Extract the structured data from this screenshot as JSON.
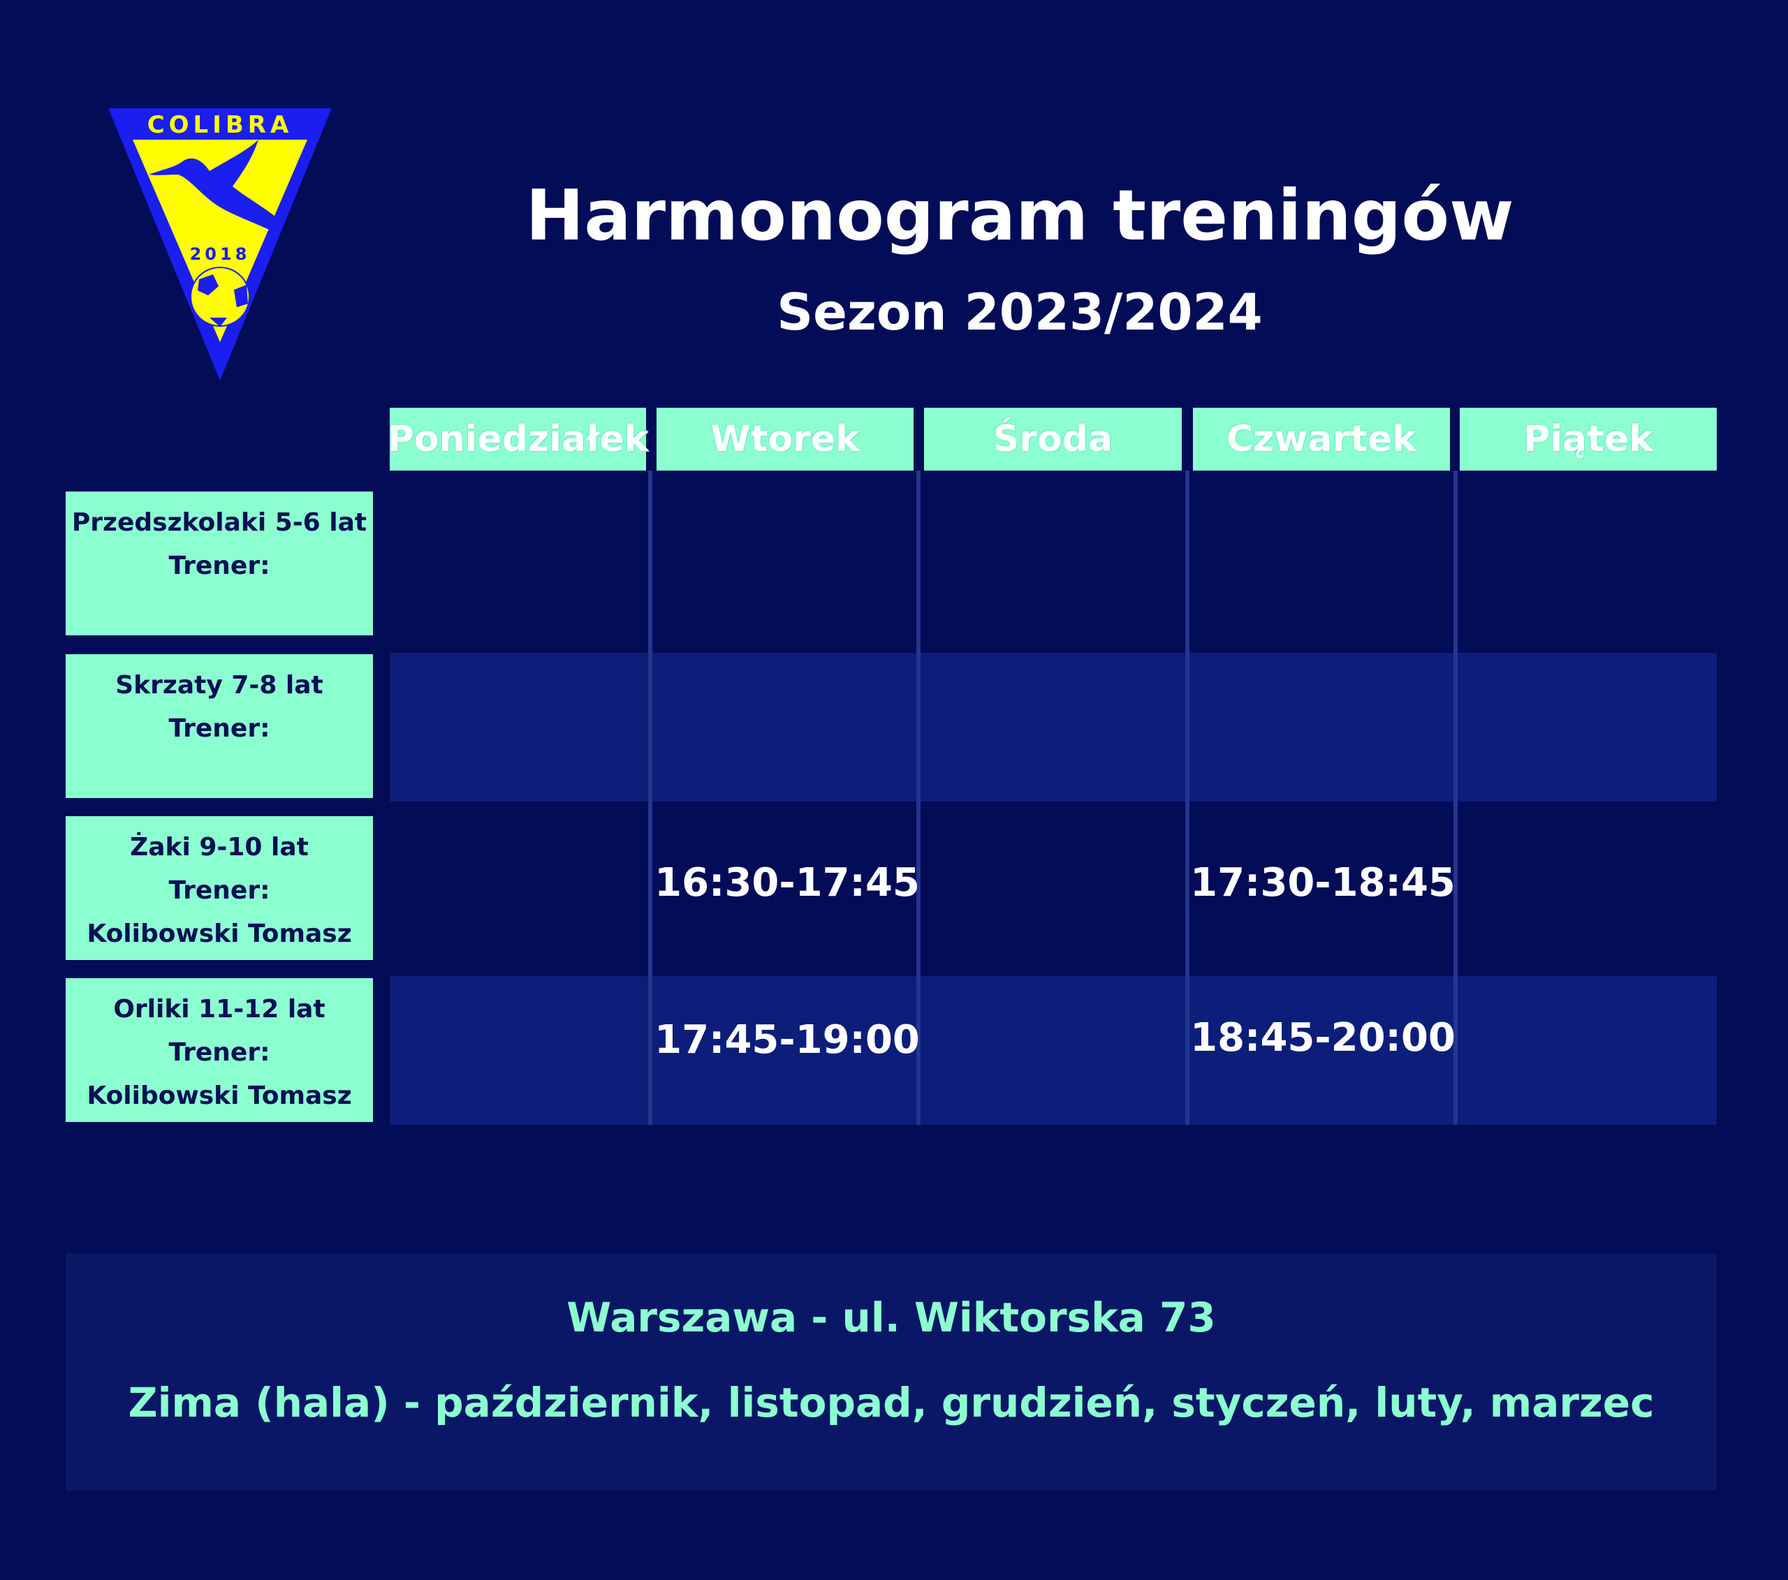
{
  "logo": {
    "top_text": "COLIBRA",
    "year": "2018",
    "colors": {
      "outer": "#1a1ef0",
      "inner": "#ffff00"
    }
  },
  "header": {
    "title": "Harmonogram treningów",
    "subtitle": "Sezon 2023/2024"
  },
  "days": [
    "Poniedziałek",
    "Wtorek",
    "Środa",
    "Czwartek",
    "Piątek"
  ],
  "groups": [
    {
      "name": "Przedszkolaki 5-6 lat",
      "trainer_label": "Trener:",
      "trainer": "",
      "times": [
        "",
        "",
        "",
        "",
        ""
      ]
    },
    {
      "name": "Skrzaty 7-8 lat",
      "trainer_label": "Trener:",
      "trainer": "",
      "times": [
        "",
        "",
        "",
        "",
        ""
      ]
    },
    {
      "name": "Żaki 9-10 lat",
      "trainer_label": "Trener:",
      "trainer": "Kolibowski Tomasz",
      "times": [
        "",
        "16:30-17:45",
        "",
        "17:30-18:45",
        ""
      ]
    },
    {
      "name": "Orliki 11-12 lat",
      "trainer_label": "Trener:",
      "trainer": "Kolibowski Tomasz",
      "times": [
        "",
        "17:45-19:00",
        "",
        "18:45-20:00",
        ""
      ]
    }
  ],
  "footer": {
    "location": "Warszawa - ul. Wiktorska 73",
    "season_note": "Zima (hala) - październik, listopad, grudzień, styczeń, luty, marzec"
  },
  "colors": {
    "background": "#020c57",
    "accent": "#8cffd0",
    "stripe": "#0c1e7a"
  }
}
